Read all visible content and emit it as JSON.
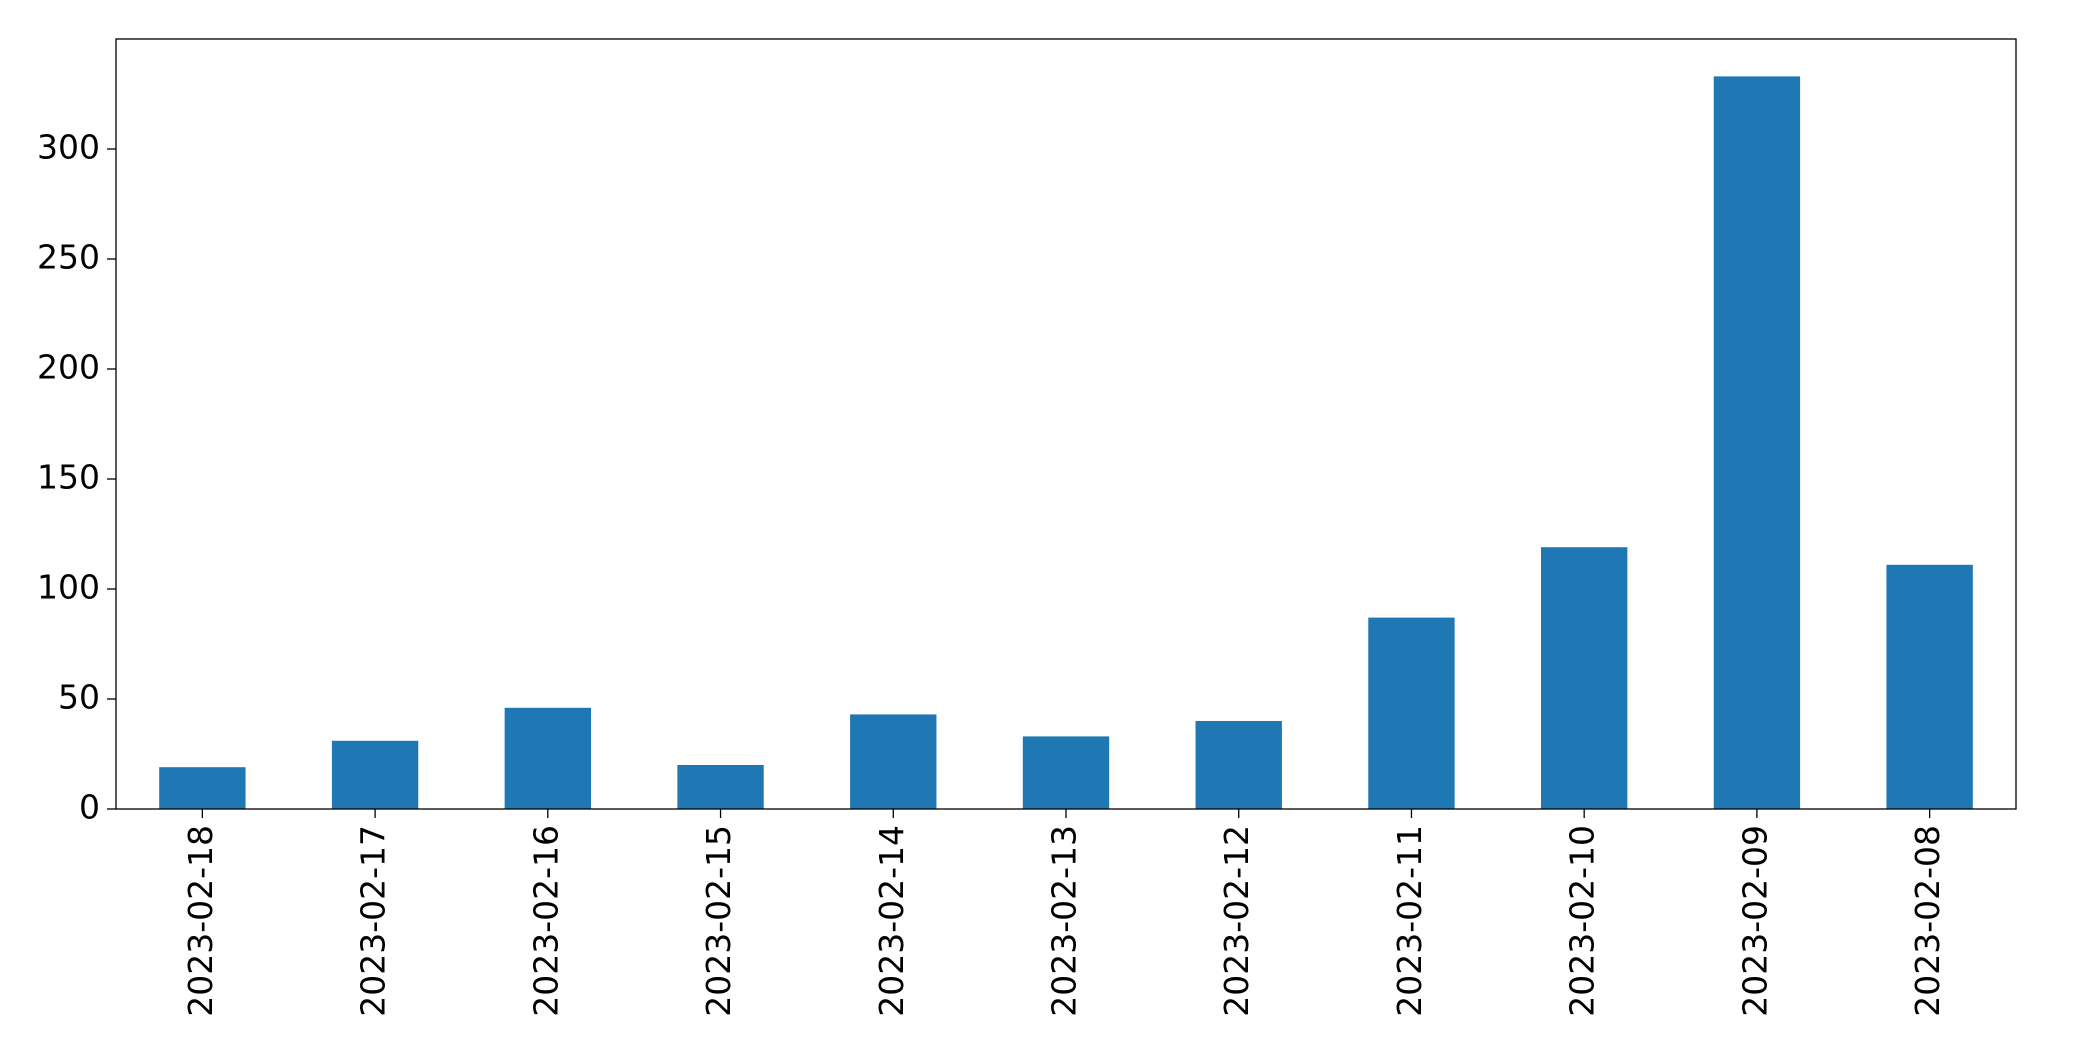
{
  "chart_data": {
    "type": "bar",
    "categories": [
      "2023-02-18",
      "2023-02-17",
      "2023-02-16",
      "2023-02-15",
      "2023-02-14",
      "2023-02-13",
      "2023-02-12",
      "2023-02-11",
      "2023-02-10",
      "2023-02-09",
      "2023-02-08"
    ],
    "values": [
      19,
      31,
      46,
      20,
      43,
      33,
      40,
      87,
      119,
      333,
      111
    ],
    "color": "#1f77b4",
    "ylim": [
      0,
      350
    ],
    "yticks": [
      0,
      50,
      100,
      150,
      200,
      250,
      300
    ],
    "grid": false
  }
}
